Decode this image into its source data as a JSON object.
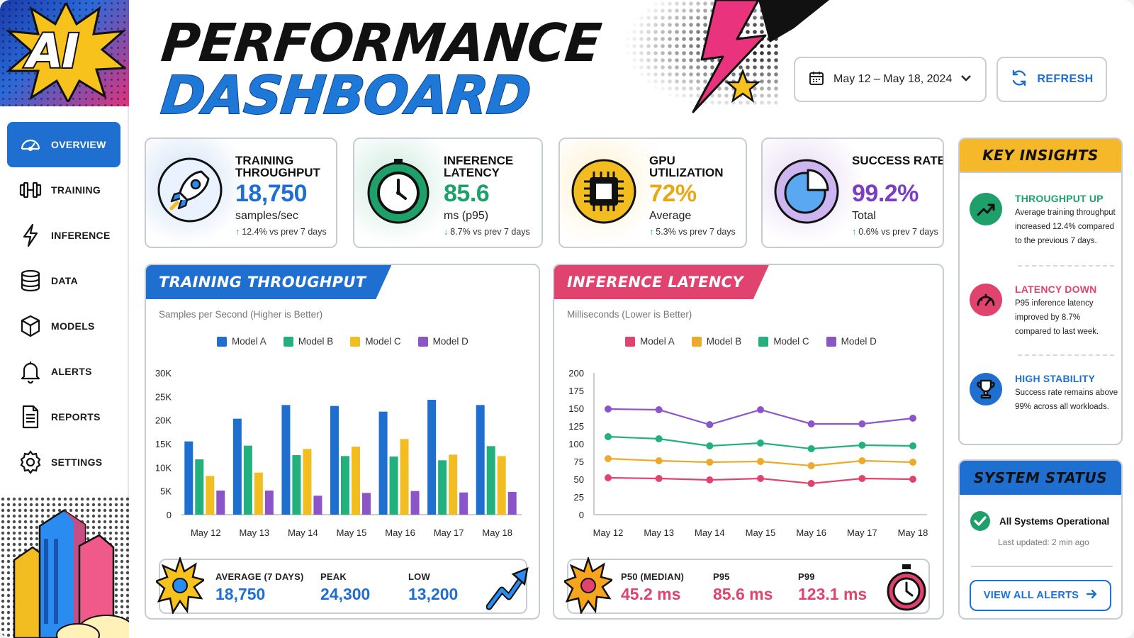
{
  "logo": {
    "text": "AI"
  },
  "header": {
    "title_line1": "PERFORMANCE",
    "title_line2": "DASHBOARD",
    "date_range": "May 12 – May 18, 2024",
    "refresh_label": "REFRESH"
  },
  "sidebar": {
    "items": [
      {
        "label": "OVERVIEW",
        "icon": "gauge-icon",
        "active": true
      },
      {
        "label": "TRAINING",
        "icon": "dumbbell-icon"
      },
      {
        "label": "INFERENCE",
        "icon": "lightning-icon"
      },
      {
        "label": "DATA",
        "icon": "database-icon"
      },
      {
        "label": "MODELS",
        "icon": "cube-icon"
      },
      {
        "label": "ALERTS",
        "icon": "bell-icon"
      },
      {
        "label": "REPORTS",
        "icon": "document-icon"
      },
      {
        "label": "SETTINGS",
        "icon": "gear-icon"
      }
    ]
  },
  "kpis": [
    {
      "title": "TRAINING THROUGHPUT",
      "value": "18,750",
      "unit": "samples/sec",
      "change": "12.4% vs prev 7 days",
      "direction": "up",
      "color": "#1f6fd1",
      "icon": "rocket-icon"
    },
    {
      "title": "INFERENCE LATENCY",
      "value": "85.6",
      "unit": "ms (p95)",
      "change": "8.7% vs prev 7 days",
      "direction": "down",
      "color": "#1fa06a",
      "icon": "stopwatch-icon"
    },
    {
      "title": "GPU UTILIZATION",
      "value": "72%",
      "unit": "Average",
      "change": "5.3% vs prev 7 days",
      "direction": "up",
      "color": "#e6a817",
      "icon": "chip-icon"
    },
    {
      "title": "SUCCESS RATE",
      "value": "99.2%",
      "unit": "Total",
      "change": "0.6% vs prev 7 days",
      "direction": "up",
      "color": "#7b3fc4",
      "icon": "pie-chart-icon"
    }
  ],
  "throughput_panel": {
    "title": "TRAINING THROUGHPUT",
    "subtitle": "Samples per Second (Higher is Better)",
    "stats": [
      {
        "label": "AVERAGE (7 DAYS)",
        "value": "18,750"
      },
      {
        "label": "PEAK",
        "value": "24,300"
      },
      {
        "label": "LOW",
        "value": "13,200"
      }
    ]
  },
  "latency_panel": {
    "title": "INFERENCE LATENCY",
    "subtitle": "Milliseconds (Lower is Better)",
    "stats": [
      {
        "label": "P50 (MEDIAN)",
        "value": "45.2 ms"
      },
      {
        "label": "P95",
        "value": "85.6 ms"
      },
      {
        "label": "P99",
        "value": "123.1 ms"
      }
    ]
  },
  "chart_data": [
    {
      "type": "bar",
      "title": "TRAINING THROUGHPUT",
      "ylabel": "Samples per Second (Higher is Better)",
      "categories": [
        "May 12",
        "May 13",
        "May 14",
        "May 15",
        "May 16",
        "May 17",
        "May 18"
      ],
      "ylim": [
        0,
        30000
      ],
      "yticks": [
        "0",
        "5K",
        "10K",
        "15K",
        "20K",
        "25K",
        "30K"
      ],
      "legend_position": "top",
      "series": [
        {
          "name": "Model A",
          "color": "#1f6fd1",
          "values": [
            15500,
            20300,
            23200,
            23000,
            21800,
            24300,
            23200
          ]
        },
        {
          "name": "Model B",
          "color": "#22b07d",
          "values": [
            11700,
            14600,
            12600,
            12400,
            12300,
            11500,
            14500
          ]
        },
        {
          "name": "Model C",
          "color": "#f2bd21",
          "values": [
            8200,
            8900,
            13900,
            14400,
            16000,
            12700,
            12400
          ]
        },
        {
          "name": "Model D",
          "color": "#8b55c9",
          "values": [
            5100,
            5100,
            4000,
            4600,
            5000,
            4700,
            4800
          ]
        }
      ]
    },
    {
      "type": "line",
      "title": "INFERENCE LATENCY",
      "ylabel": "Milliseconds (Lower is Better)",
      "categories": [
        "May 12",
        "May 13",
        "May 14",
        "May 15",
        "May 16",
        "May 17",
        "May 18"
      ],
      "ylim": [
        0,
        200
      ],
      "yticks": [
        "0",
        "25",
        "50",
        "75",
        "100",
        "125",
        "150",
        "175",
        "200"
      ],
      "legend_position": "top",
      "series": [
        {
          "name": "Model A",
          "color": "#e0436e",
          "values": [
            52,
            51,
            49,
            51,
            44,
            51,
            50
          ]
        },
        {
          "name": "Model B",
          "color": "#ecaa2a",
          "values": [
            79,
            76,
            74,
            75,
            69,
            76,
            74
          ]
        },
        {
          "name": "Model C",
          "color": "#22b07d",
          "values": [
            110,
            107,
            97,
            101,
            93,
            98,
            97
          ]
        },
        {
          "name": "Model D",
          "color": "#8b55c9",
          "values": [
            149,
            148,
            127,
            148,
            128,
            128,
            136
          ]
        }
      ]
    }
  ],
  "insights": {
    "title": "KEY INSIGHTS",
    "items": [
      {
        "title": "THROUGHPUT UP",
        "text": "Average training throughput increased 12.4% compared to the previous 7 days.",
        "color": "#1fa06a",
        "icon": "trend-up-icon"
      },
      {
        "title": "LATENCY DOWN",
        "text": "P95 inference latency improved by 8.7% compared to last week.",
        "color": "#e0436e",
        "icon": "speedometer-icon"
      },
      {
        "title": "HIGH STABILITY",
        "text": "Success rate remains above 99% across all workloads.",
        "color": "#1f6fd1",
        "icon": "trophy-icon"
      }
    ]
  },
  "system_status": {
    "title": "SYSTEM STATUS",
    "status": "All Systems Operational",
    "updated": "Last updated: 2 min ago",
    "button": "VIEW ALL ALERTS"
  }
}
